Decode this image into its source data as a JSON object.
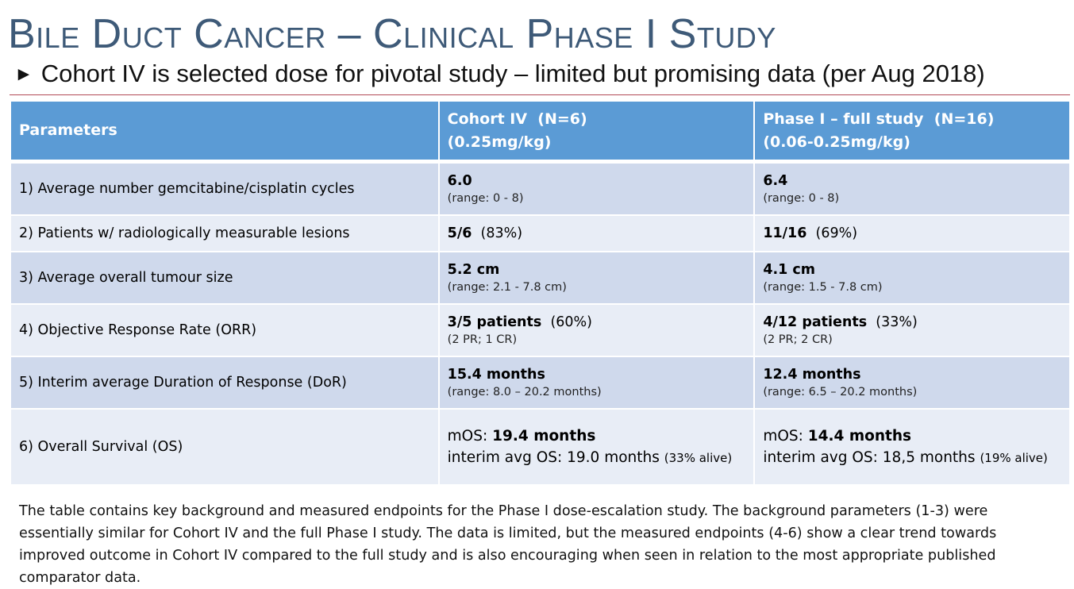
{
  "slide": {
    "title": "Bile Duct Cancer – Clinical Phase I Study",
    "subtitle_arrow": "►",
    "subtitle": "Cohort IV is selected dose for pivotal study – limited but promising data (per Aug 2018)"
  },
  "table": {
    "headers": {
      "params": "Parameters",
      "cohort_line1": "Cohort IV  (N=6)",
      "cohort_line2": "(0.25mg/kg)",
      "full_line1": "Phase I – full study  (N=16)",
      "full_line2": "(0.06-0.25mg/kg)"
    },
    "rows": [
      {
        "param": "1) Average number gemcitabine/cisplatin cycles",
        "cohort_main": "6.0",
        "cohort_main_extra": "",
        "cohort_sub": "(range: 0 - 8)",
        "full_main": "6.4",
        "full_main_extra": "",
        "full_sub": "(range: 0 - 8)"
      },
      {
        "param": "2) Patients w/ radiologically measurable lesions",
        "cohort_main": "5/6",
        "cohort_main_extra": "  (83%)",
        "cohort_sub": "",
        "full_main": "11/16",
        "full_main_extra": "  (69%)",
        "full_sub": ""
      },
      {
        "param": "3) Average overall tumour size",
        "cohort_main": "5.2 cm",
        "cohort_main_extra": "",
        "cohort_sub": "(range: 2.1 - 7.8 cm)",
        "full_main": "4.1 cm",
        "full_main_extra": "",
        "full_sub": "(range: 1.5 - 7.8 cm)"
      },
      {
        "param": "4) Objective Response Rate (ORR)",
        "cohort_main": "3/5 patients",
        "cohort_main_extra": "  (60%)",
        "cohort_sub": "(2 PR; 1 CR)",
        "full_main": "4/12 patients",
        "full_main_extra": "  (33%)",
        "full_sub": "(2 PR; 2 CR)"
      },
      {
        "param": "5) Interim average Duration of Response (DoR)",
        "cohort_main": "15.4 months",
        "cohort_main_extra": "",
        "cohort_sub": "(range: 8.0 – 20.2 months)",
        "full_main": "12.4 months",
        "full_main_extra": "",
        "full_sub": "(range: 6.5 – 20.2 months)"
      }
    ],
    "os_row": {
      "param": "6) Overall Survival (OS)",
      "cohort_mos_label": "mOS: ",
      "cohort_mos_value": "19.4 months",
      "cohort_interim": "interim avg OS: 19.0 months",
      "cohort_alive": "(33% alive)",
      "full_mos_label": "mOS: ",
      "full_mos_value": "14.4 months",
      "full_interim": "interim avg OS: 18,5 months",
      "full_alive": "(19% alive)"
    }
  },
  "footer": "The table contains key background and measured endpoints for the Phase I dose-escalation study.  The background parameters (1-3) were essentially similar for Cohort IV and the full Phase I study. The data is limited, but the measured endpoints (4-6) show a clear trend towards improved outcome in Cohort IV compared to the full study and is also encouraging when seen in relation to the most appropriate published comparator data."
}
